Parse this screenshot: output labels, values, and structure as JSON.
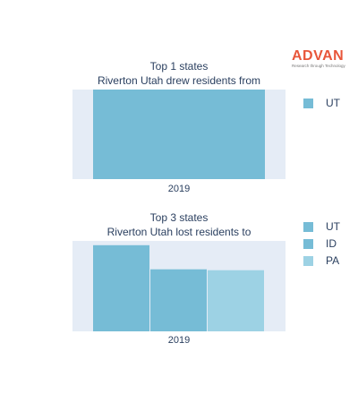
{
  "logo": {
    "word": "ADVAN",
    "tagline": "Research through Technology"
  },
  "colors": {
    "plot_bg": "#e5ecf6",
    "UT": "#76bcd6",
    "ID": "#76bcd6",
    "PA": "#9dd2e4"
  },
  "chart_data": [
    {
      "type": "bar",
      "title_lines": [
        "Top 1 states",
        "Riverton Utah drew residents from"
      ],
      "categories": [
        "2019"
      ],
      "series": [
        {
          "name": "UT",
          "values": [
            1
          ]
        }
      ],
      "ylim": [
        0,
        1
      ],
      "grid": false,
      "legend_position": "right"
    },
    {
      "type": "bar",
      "title_lines": [
        "Top 3 states",
        "Riverton Utah lost residents to"
      ],
      "categories": [
        "2019"
      ],
      "series": [
        {
          "name": "UT",
          "values": [
            1.0
          ]
        },
        {
          "name": "ID",
          "values": [
            0.72
          ]
        },
        {
          "name": "PA",
          "values": [
            0.71
          ]
        }
      ],
      "ylim": [
        0,
        1.05
      ],
      "grid": false,
      "legend_position": "right"
    }
  ]
}
